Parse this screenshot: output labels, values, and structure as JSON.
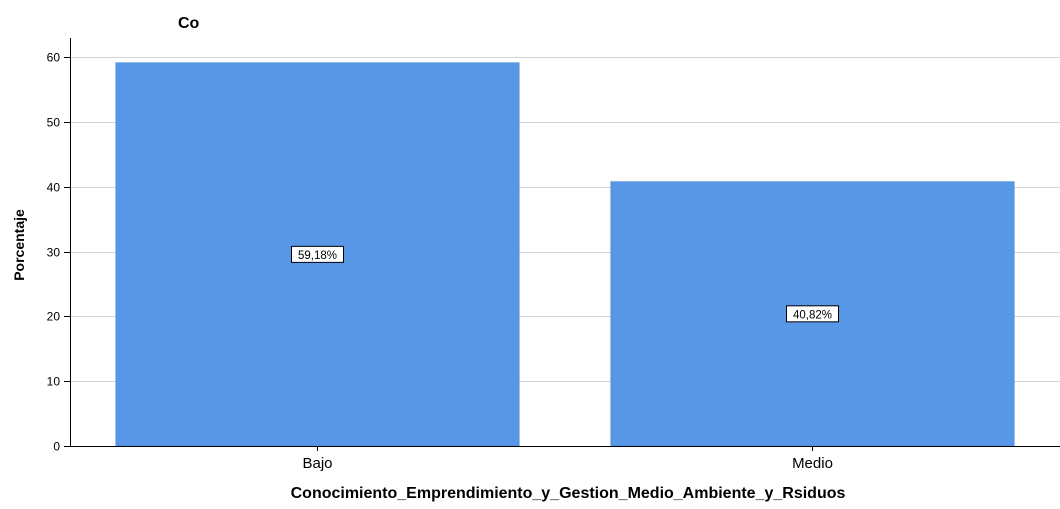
{
  "chart_data": {
    "type": "bar",
    "title": "Co",
    "xlabel": "Conocimiento_Emprendimiento_y_Gestion_Medio_Ambiente_y_Rsiduos",
    "ylabel": "Porcentaje",
    "categories": [
      "Bajo",
      "Medio"
    ],
    "values": [
      59.18,
      40.82
    ],
    "data_labels": [
      "59,18%",
      "40,82%"
    ],
    "ylim": [
      0,
      63
    ],
    "yticks": [
      0,
      10,
      20,
      30,
      40,
      50,
      60
    ],
    "grid": true,
    "legend": "none",
    "bar_color": "#5797e6"
  }
}
